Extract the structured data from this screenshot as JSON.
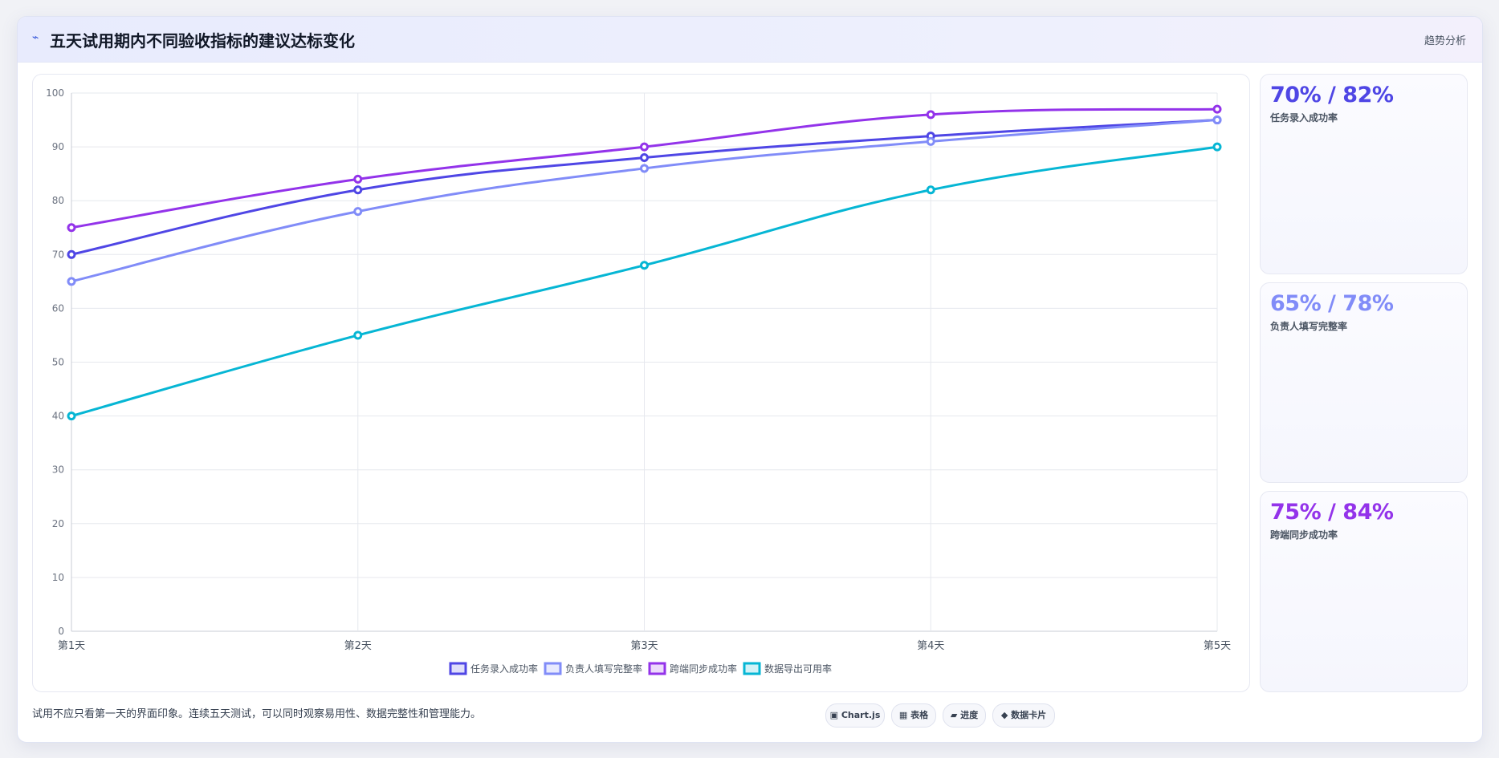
{
  "header": {
    "icon": "pulse-icon",
    "title": "五天试用期内不同验收指标的建议达标变化",
    "tag": "趋势分析"
  },
  "chart_data": {
    "type": "line",
    "categories": [
      "第1天",
      "第2天",
      "第3天",
      "第4天",
      "第5天"
    ],
    "ylim": [
      0,
      100
    ],
    "yticks": [
      "0",
      "10",
      "20",
      "30",
      "40",
      "50",
      "60",
      "70",
      "80",
      "90",
      "100"
    ],
    "grid": true,
    "legend": "bottom",
    "series": [
      {
        "name": "任务录入成功率",
        "color": "#4f46e5",
        "values": [
          70,
          82,
          88,
          92,
          95
        ]
      },
      {
        "name": "负责人填写完整率",
        "color": "#818cf8",
        "values": [
          65,
          78,
          86,
          91,
          95
        ]
      },
      {
        "name": "跨端同步成功率",
        "color": "#9333ea",
        "values": [
          75,
          84,
          90,
          96,
          97
        ]
      },
      {
        "name": "数据导出可用率",
        "color": "#06b6d4",
        "values": [
          40,
          55,
          68,
          82,
          90
        ]
      }
    ]
  },
  "stats": [
    {
      "value": "70% / 82%",
      "label": "任务录入成功率",
      "color": "#4f46e5"
    },
    {
      "value": "65% / 78%",
      "label": "负责人填写完整率",
      "color": "#818cf8"
    },
    {
      "value": "75% / 84%",
      "label": "跨端同步成功率",
      "color": "#9333ea"
    }
  ],
  "footer": {
    "note": "试用不应只看第一天的界面印象。连续五天测试，可以同时观察易用性、数据完整性和管理能力。",
    "chips": [
      {
        "icon": "chart-icon",
        "glyph": "▣",
        "label": "Chart.js"
      },
      {
        "icon": "table-icon",
        "glyph": "▦",
        "label": "表格"
      },
      {
        "icon": "progress-icon",
        "glyph": "▰",
        "label": "进度"
      },
      {
        "icon": "card-icon",
        "glyph": "◆",
        "label": "数据卡片"
      }
    ]
  }
}
